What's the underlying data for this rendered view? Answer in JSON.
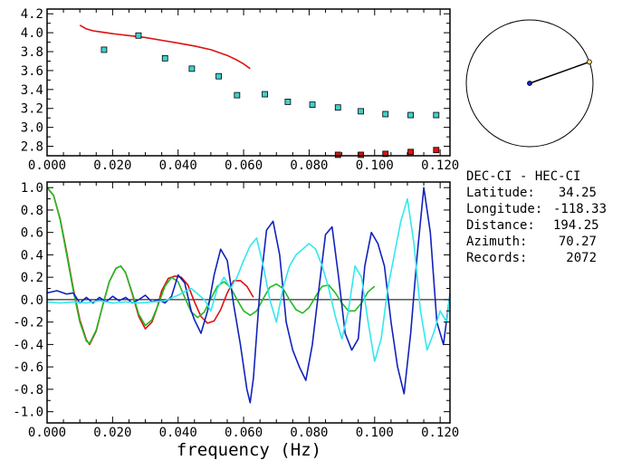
{
  "header": {
    "station_pair": "DEC-CI - HEC-CI"
  },
  "info": [
    {
      "label": "Latitude:",
      "value": "34.25"
    },
    {
      "label": "Longitude:",
      "value": "-118.33"
    },
    {
      "label": "Distance:",
      "value": "194.25"
    },
    {
      "label": "Azimuth:",
      "value": "70.27"
    },
    {
      "label": "Records:",
      "value": "2072"
    }
  ],
  "azimuth_deg": 70.27,
  "colors": {
    "red": "#dd1111",
    "cyan": "#33e8ee",
    "blue": "#1122bb",
    "green": "#22bb22",
    "squares": "#40d0cc"
  },
  "chart_data": [
    {
      "type": "scatter",
      "xlabel": "",
      "ylabel": "",
      "xlim": [
        0.0,
        0.123
      ],
      "ylim": [
        2.7,
        4.25
      ],
      "x_ticks": [
        "0.000",
        "0.020",
        "0.040",
        "0.060",
        "0.080",
        "0.100",
        "0.120"
      ],
      "y_ticks": [
        "2.8",
        "3.0",
        "3.2",
        "3.4",
        "3.6",
        "3.8",
        "4.0",
        "4.2"
      ],
      "series": [
        {
          "kind": "line",
          "color": "#dd1111",
          "x": [
            0.01,
            0.012,
            0.014,
            0.016,
            0.02,
            0.025,
            0.03,
            0.035,
            0.04,
            0.045,
            0.05,
            0.055,
            0.058,
            0.06,
            0.062
          ],
          "y": [
            4.08,
            4.04,
            4.02,
            4.01,
            3.99,
            3.97,
            3.95,
            3.92,
            3.89,
            3.86,
            3.82,
            3.76,
            3.71,
            3.67,
            3.62
          ]
        },
        {
          "kind": "square",
          "color": "#40d0cc",
          "x": [
            0.0174,
            0.0279,
            0.036,
            0.0442,
            0.0524,
            0.058,
            0.0665,
            0.0735,
            0.081,
            0.0888,
            0.0958,
            0.1033,
            0.111,
            0.1188
          ],
          "y": [
            3.82,
            3.97,
            3.73,
            3.62,
            3.54,
            3.34,
            3.35,
            3.27,
            3.24,
            3.21,
            3.17,
            3.14,
            3.13,
            3.13
          ]
        },
        {
          "kind": "square",
          "color": "#dd1111",
          "x": [
            0.0888,
            0.0958,
            0.1033,
            0.111,
            0.1188
          ],
          "y": [
            2.71,
            2.71,
            2.72,
            2.74,
            2.76
          ]
        }
      ]
    },
    {
      "type": "line",
      "xlabel": "frequency (Hz)",
      "ylabel": "",
      "xlim": [
        0.0,
        0.123
      ],
      "ylim": [
        -1.1,
        1.05
      ],
      "x_ticks": [
        "0.000",
        "0.020",
        "0.040",
        "0.060",
        "0.080",
        "0.100",
        "0.120"
      ],
      "y_ticks": [
        "1.0",
        "0.8",
        "0.6",
        "0.4",
        "0.2",
        "0.0",
        "-0.2",
        "-0.4",
        "-0.6",
        "-0.8",
        "-1.0"
      ],
      "series": [
        {
          "color": "#dd1111",
          "x": [
            0.0,
            0.002,
            0.004,
            0.006,
            0.008,
            0.01,
            0.012,
            0.013,
            0.015,
            0.017,
            0.019,
            0.021,
            0.0225,
            0.024,
            0.026,
            0.028,
            0.03,
            0.032,
            0.0335,
            0.035,
            0.037,
            0.039,
            0.041,
            0.043,
            0.045,
            0.047,
            0.049,
            0.051,
            0.053,
            0.055,
            0.057,
            0.059,
            0.061,
            0.063
          ],
          "y": [
            1.0,
            0.93,
            0.72,
            0.42,
            0.1,
            -0.18,
            -0.36,
            -0.4,
            -0.28,
            -0.05,
            0.16,
            0.28,
            0.3,
            0.24,
            0.05,
            -0.15,
            -0.26,
            -0.2,
            -0.08,
            0.08,
            0.19,
            0.21,
            0.2,
            0.13,
            -0.02,
            -0.15,
            -0.21,
            -0.19,
            -0.09,
            0.06,
            0.17,
            0.17,
            0.12,
            0.02
          ]
        },
        {
          "color": "#22bb22",
          "x": [
            0.0,
            0.002,
            0.004,
            0.006,
            0.008,
            0.01,
            0.012,
            0.013,
            0.015,
            0.017,
            0.019,
            0.021,
            0.0225,
            0.024,
            0.026,
            0.028,
            0.03,
            0.032,
            0.034,
            0.036,
            0.038,
            0.04,
            0.042,
            0.044,
            0.046,
            0.048,
            0.05,
            0.052,
            0.054,
            0.056,
            0.058,
            0.06,
            0.062,
            0.064,
            0.066,
            0.068,
            0.07,
            0.072,
            0.074,
            0.076,
            0.078,
            0.08,
            0.082,
            0.084,
            0.086,
            0.088,
            0.09,
            0.092,
            0.094,
            0.096,
            0.098,
            0.1
          ],
          "y": [
            1.0,
            0.93,
            0.71,
            0.4,
            0.08,
            -0.2,
            -0.37,
            -0.39,
            -0.27,
            -0.05,
            0.16,
            0.28,
            0.3,
            0.24,
            0.06,
            -0.13,
            -0.23,
            -0.18,
            -0.04,
            0.12,
            0.2,
            0.16,
            0.02,
            -0.11,
            -0.16,
            -0.11,
            0.01,
            0.12,
            0.16,
            0.11,
            0.0,
            -0.1,
            -0.14,
            -0.1,
            0.01,
            0.11,
            0.14,
            0.1,
            0.0,
            -0.09,
            -0.12,
            -0.07,
            0.03,
            0.12,
            0.13,
            0.06,
            -0.03,
            -0.1,
            -0.1,
            -0.03,
            0.07,
            0.12
          ]
        },
        {
          "color": "#1122bb",
          "x": [
            0.0,
            0.003,
            0.006,
            0.008,
            0.01,
            0.012,
            0.014,
            0.016,
            0.018,
            0.02,
            0.022,
            0.024,
            0.026,
            0.028,
            0.03,
            0.032,
            0.034,
            0.036,
            0.038,
            0.04,
            0.042,
            0.044,
            0.045,
            0.047,
            0.049,
            0.051,
            0.053,
            0.055,
            0.057,
            0.059,
            0.061,
            0.062,
            0.063,
            0.065,
            0.067,
            0.069,
            0.071,
            0.073,
            0.075,
            0.077,
            0.079,
            0.081,
            0.083,
            0.085,
            0.087,
            0.089,
            0.091,
            0.093,
            0.095,
            0.097,
            0.099,
            0.101,
            0.103,
            0.105,
            0.107,
            0.109,
            0.111,
            0.113,
            0.115,
            0.117,
            0.119,
            0.121,
            0.123
          ],
          "y": [
            0.06,
            0.08,
            0.05,
            0.06,
            -0.03,
            0.02,
            -0.03,
            0.02,
            -0.02,
            0.03,
            -0.01,
            0.02,
            -0.03,
            0.0,
            0.04,
            -0.02,
            0.0,
            -0.03,
            0.03,
            0.22,
            0.15,
            -0.1,
            -0.18,
            -0.3,
            -0.1,
            0.22,
            0.45,
            0.35,
            -0.05,
            -0.4,
            -0.8,
            -0.92,
            -0.7,
            0.1,
            0.62,
            0.7,
            0.4,
            -0.2,
            -0.45,
            -0.6,
            -0.72,
            -0.4,
            0.1,
            0.58,
            0.65,
            0.2,
            -0.3,
            -0.45,
            -0.35,
            0.3,
            0.6,
            0.5,
            0.3,
            -0.2,
            -0.6,
            -0.84,
            -0.3,
            0.4,
            1.0,
            0.6,
            -0.2,
            -0.4,
            0.05
          ]
        },
        {
          "color": "#33e8ee",
          "x": [
            0.0,
            0.004,
            0.008,
            0.012,
            0.016,
            0.02,
            0.024,
            0.028,
            0.032,
            0.036,
            0.04,
            0.044,
            0.048,
            0.05,
            0.052,
            0.054,
            0.056,
            0.058,
            0.06,
            0.062,
            0.064,
            0.066,
            0.068,
            0.07,
            0.072,
            0.074,
            0.076,
            0.078,
            0.08,
            0.082,
            0.084,
            0.086,
            0.088,
            0.09,
            0.092,
            0.094,
            0.096,
            0.098,
            0.1,
            0.102,
            0.104,
            0.106,
            0.108,
            0.11,
            0.112,
            0.114,
            0.116,
            0.118,
            0.12,
            0.122,
            0.123
          ],
          "y": [
            -0.02,
            -0.03,
            -0.02,
            -0.03,
            -0.01,
            -0.03,
            -0.02,
            -0.03,
            -0.02,
            -0.01,
            0.04,
            0.1,
            0.0,
            -0.1,
            0.1,
            0.2,
            0.1,
            0.2,
            0.35,
            0.48,
            0.55,
            0.3,
            0.0,
            -0.2,
            0.1,
            0.3,
            0.4,
            0.45,
            0.5,
            0.45,
            0.3,
            0.1,
            -0.15,
            -0.35,
            -0.1,
            0.3,
            0.2,
            -0.2,
            -0.55,
            -0.35,
            0.1,
            0.4,
            0.7,
            0.9,
            0.5,
            -0.1,
            -0.45,
            -0.3,
            -0.1,
            -0.2,
            0.05
          ]
        }
      ]
    }
  ]
}
